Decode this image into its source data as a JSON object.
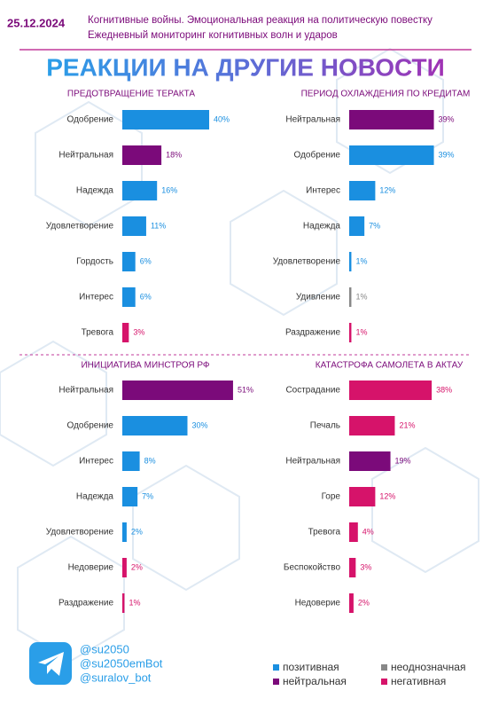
{
  "header": {
    "date": "25.12.2024",
    "line1": "Когнитивные войны. Эмоциональная реакция на политическую повестку",
    "line2": "Ежедневный мониторинг когнитивных волн и ударов"
  },
  "title": "РЕАКЦИИ НА ДРУГИЕ НОВОСТИ",
  "chart_data": [
    {
      "type": "bar",
      "title": "ПРЕДОТВРАЩЕНИЕ ТЕРАКТА",
      "categories": [
        "Одобрение",
        "Нейтральная",
        "Надежда",
        "Удовлетворение",
        "Гордость",
        "Интерес",
        "Тревога"
      ],
      "values": [
        40,
        18,
        16,
        11,
        6,
        6,
        3
      ],
      "value_labels": [
        "40%",
        "18%",
        "16%",
        "11%",
        "6%",
        "6%",
        "3%"
      ],
      "colors": [
        "#1a8fe0",
        "#7b0a7a",
        "#1a8fe0",
        "#1a8fe0",
        "#1a8fe0",
        "#1a8fe0",
        "#d6136a"
      ]
    },
    {
      "type": "bar",
      "title": "ПЕРИОД ОХЛАЖДЕНИЯ ПО КРЕДИТАМ",
      "categories": [
        "Нейтральная",
        "Одобрение",
        "Интерес",
        "Надежда",
        "Удовлетворение",
        "Удивление",
        "Раздражение"
      ],
      "values": [
        39,
        39,
        12,
        7,
        1,
        1,
        1
      ],
      "value_labels": [
        "39%",
        "39%",
        "12%",
        "7%",
        "1%",
        "1%",
        "1%"
      ],
      "colors": [
        "#7b0a7a",
        "#1a8fe0",
        "#1a8fe0",
        "#1a8fe0",
        "#1a8fe0",
        "#888888",
        "#d6136a"
      ]
    },
    {
      "type": "bar",
      "title": "ИНИЦИАТИВА МИНСТРОЯ РФ",
      "categories": [
        "Нейтральная",
        "Одобрение",
        "Интерес",
        "Надежда",
        "Удовлетворение",
        "Недоверие",
        "Раздражение"
      ],
      "values": [
        51,
        30,
        8,
        7,
        2,
        2,
        1
      ],
      "value_labels": [
        "51%",
        "30%",
        "8%",
        "7%",
        "2%",
        "2%",
        "1%"
      ],
      "colors": [
        "#7b0a7a",
        "#1a8fe0",
        "#1a8fe0",
        "#1a8fe0",
        "#1a8fe0",
        "#d6136a",
        "#d6136a"
      ]
    },
    {
      "type": "bar",
      "title": "КАТАСТРОФА САМОЛЕТА В АКТАУ",
      "categories": [
        "Сострадание",
        "Печаль",
        "Нейтральная",
        "Горе",
        "Тревога",
        "Беспокойство",
        "Недоверие"
      ],
      "values": [
        38,
        21,
        19,
        12,
        4,
        3,
        2
      ],
      "value_labels": [
        "38%",
        "21%",
        "19%",
        "12%",
        "4%",
        "3%",
        "2%"
      ],
      "colors": [
        "#d6136a",
        "#d6136a",
        "#7b0a7a",
        "#d6136a",
        "#d6136a",
        "#d6136a",
        "#d6136a"
      ]
    }
  ],
  "legend": [
    {
      "name": "позитивная",
      "color": "#1a8fe0"
    },
    {
      "name": "нейтральная",
      "color": "#7b0a7a"
    },
    {
      "name": "неоднозначная",
      "color": "#888888"
    },
    {
      "name": "негативная",
      "color": "#d6136a"
    }
  ],
  "footer": {
    "handles": [
      "@su2050",
      "@su2050emBot",
      "@suralov_bot"
    ]
  }
}
